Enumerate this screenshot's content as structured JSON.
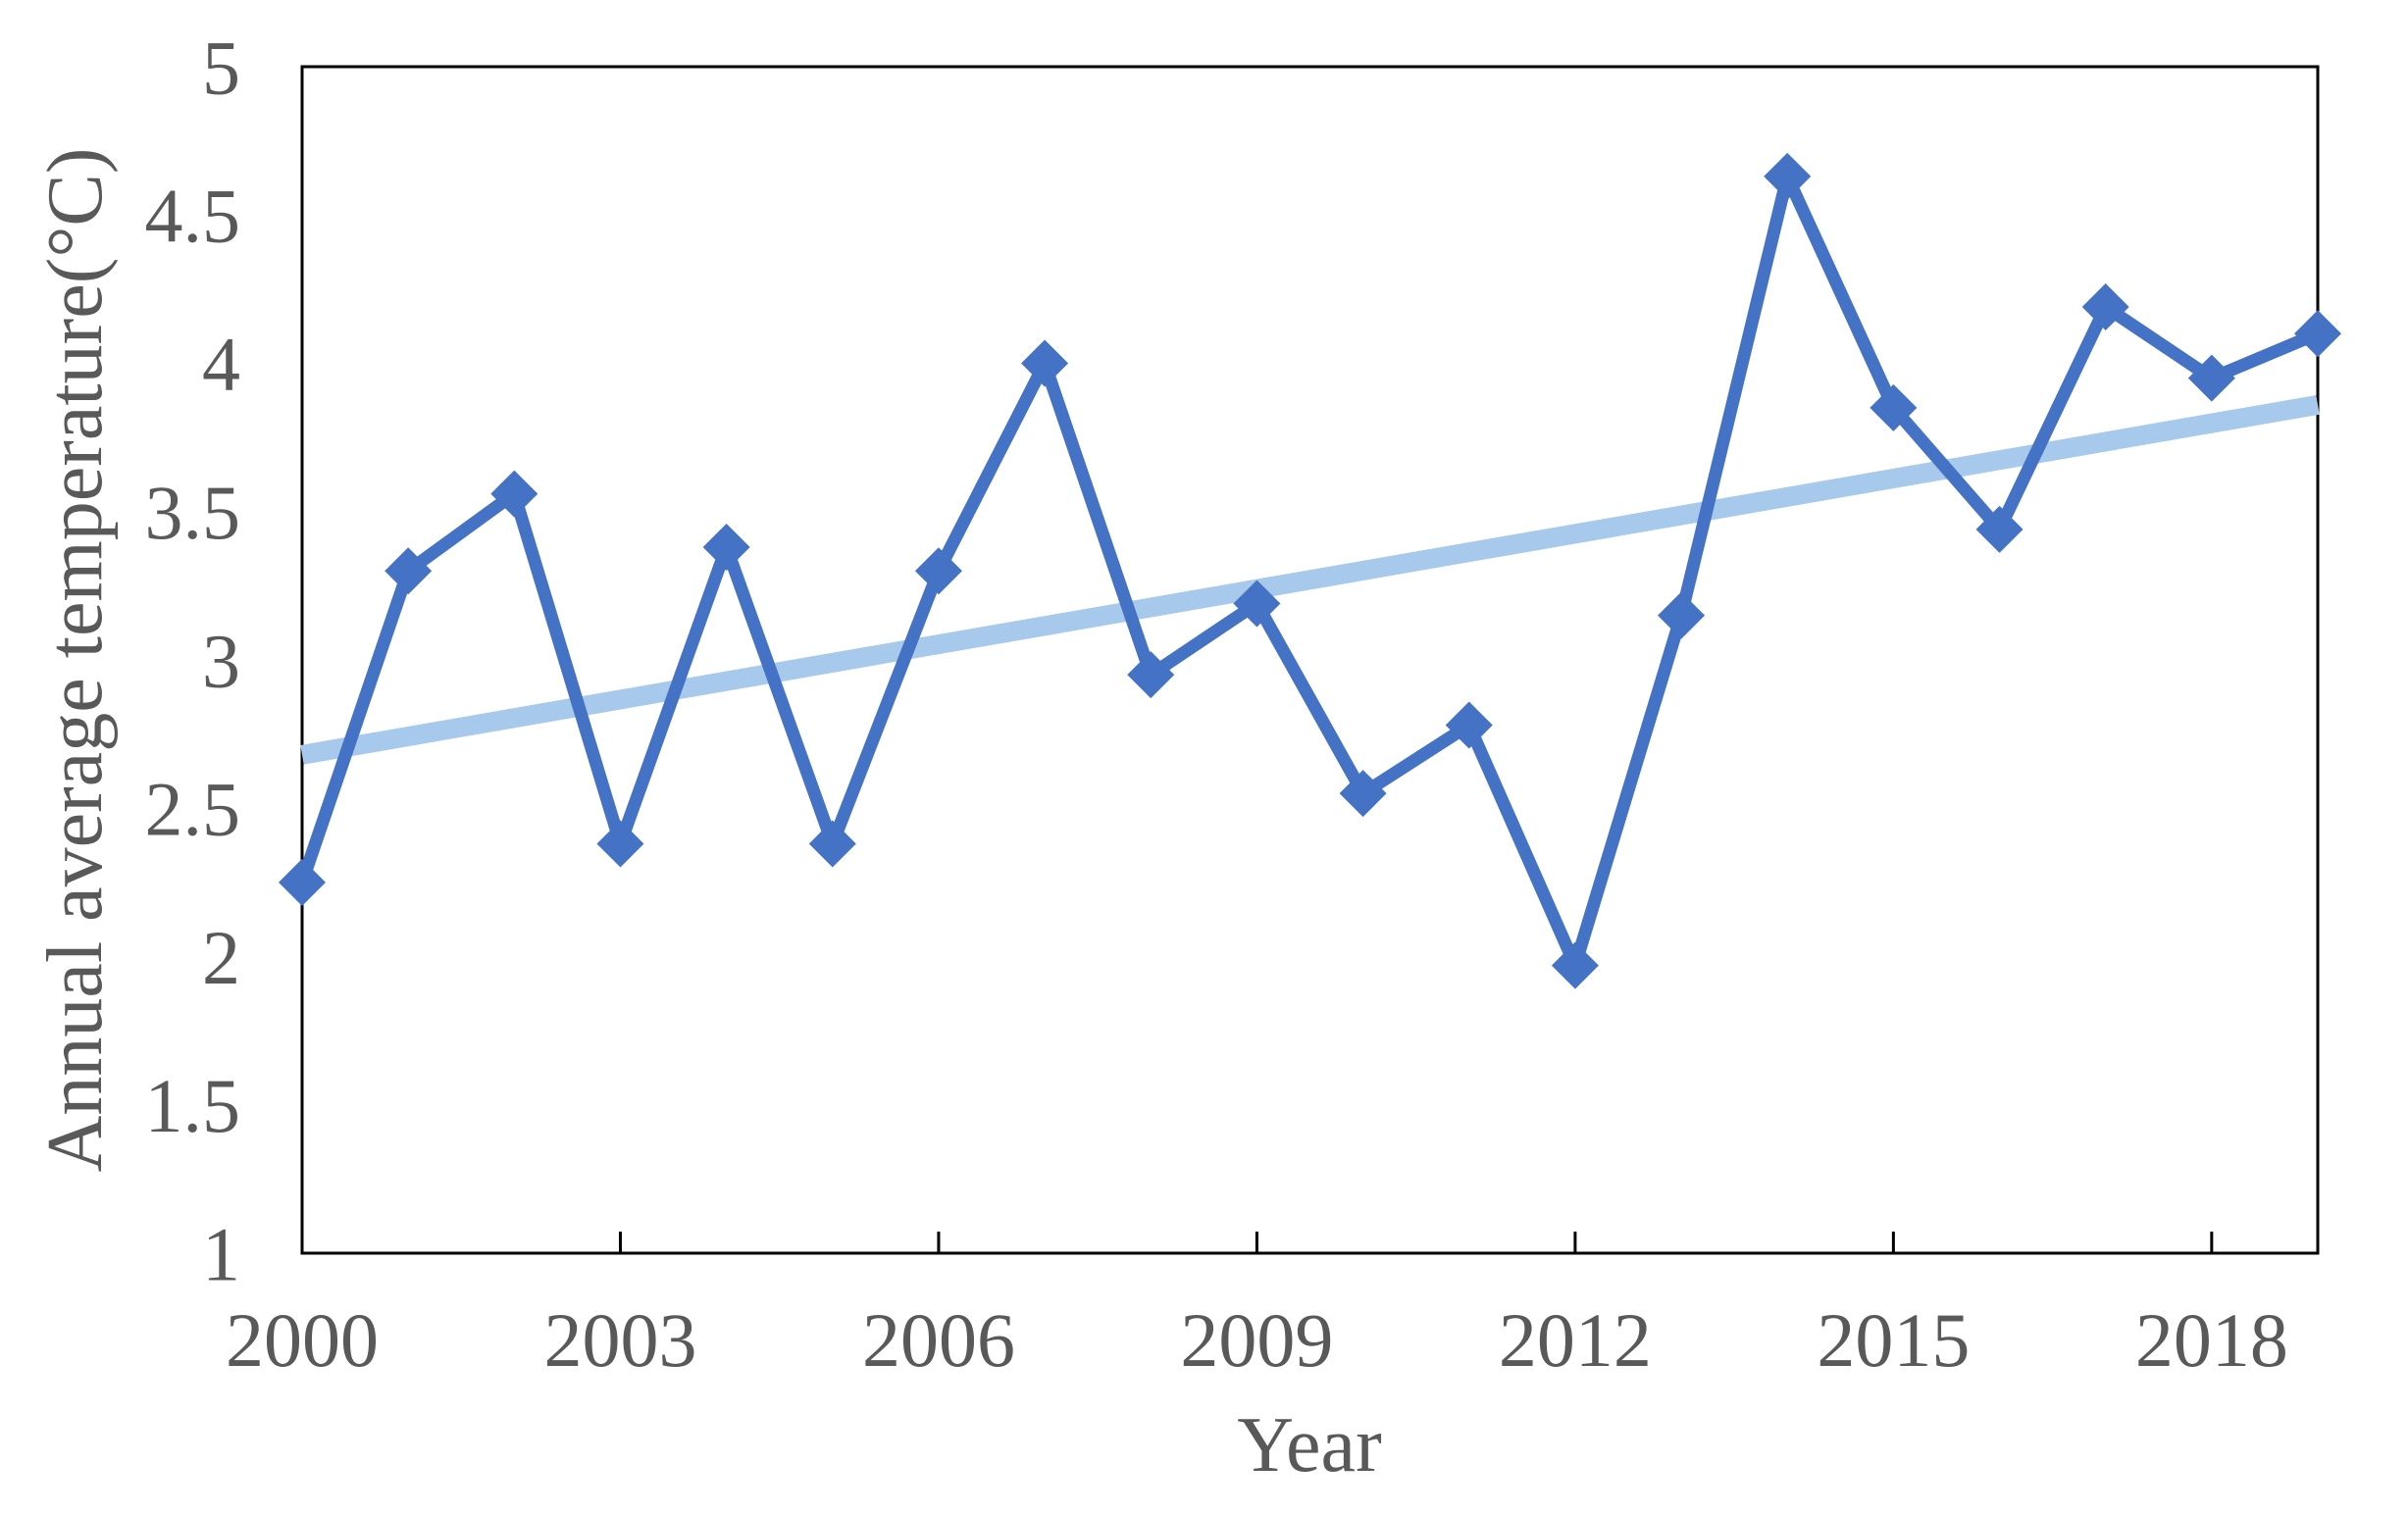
{
  "chart_data": {
    "type": "line",
    "title": "",
    "x": [
      2000,
      2001,
      2002,
      2003,
      2004,
      2005,
      2006,
      2007,
      2008,
      2009,
      2010,
      2011,
      2012,
      2013,
      2014,
      2015,
      2016,
      2017,
      2018,
      2019
    ],
    "series": [
      {
        "name": "annual-average-temperature",
        "values": [
          2.25,
          3.3,
          3.56,
          2.38,
          3.38,
          2.38,
          3.3,
          4.0,
          2.95,
          3.19,
          2.55,
          2.78,
          1.97,
          3.15,
          4.63,
          3.85,
          3.44,
          4.19,
          3.95,
          4.1
        ]
      }
    ],
    "trendline": {
      "name": "linear-trend",
      "x": [
        2000,
        2019
      ],
      "values": [
        2.68,
        3.86
      ]
    },
    "xlabel": "Year",
    "ylabel": "Annual average temperature(°C)",
    "xlim": [
      2000,
      2019
    ],
    "ylim": [
      1,
      5
    ],
    "xticks": [
      2000,
      2003,
      2006,
      2009,
      2012,
      2015,
      2018
    ],
    "yticks": [
      1,
      1.5,
      2,
      2.5,
      3,
      3.5,
      4,
      4.5,
      5
    ],
    "grid": false,
    "legend": "none",
    "styles": {
      "series_color": "#4472C4",
      "trend_color": "#A6C9EC",
      "axis_line_color": "#000000",
      "text_color": "#595959",
      "marker": "diamond"
    }
  }
}
